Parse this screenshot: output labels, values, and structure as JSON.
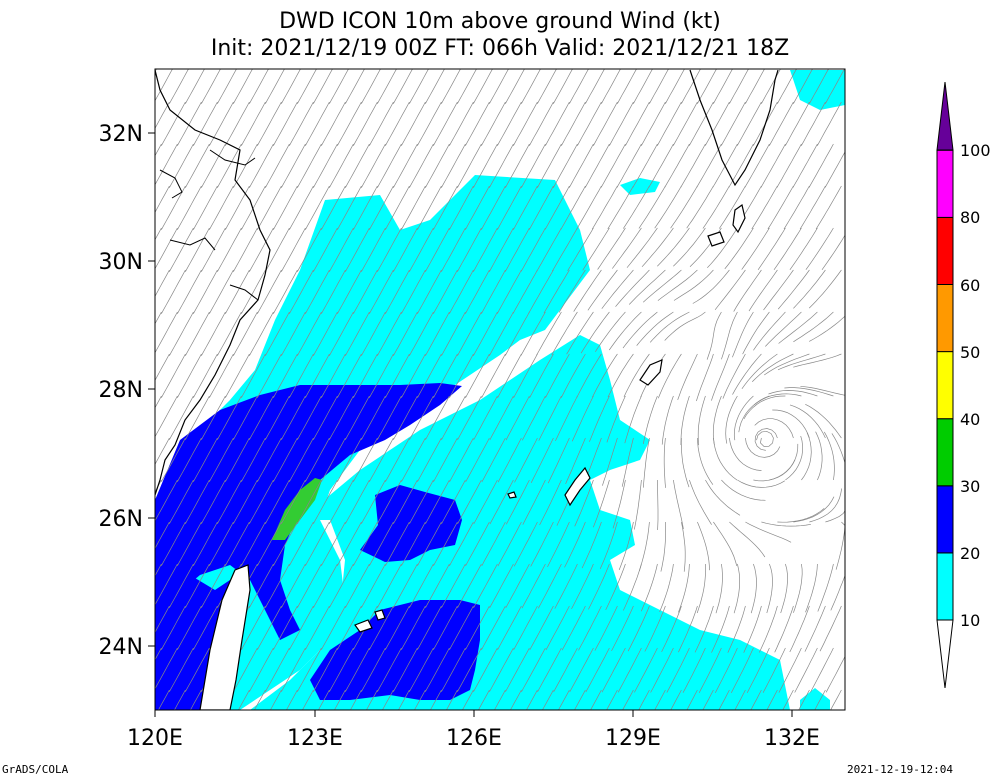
{
  "title": {
    "line1": "DWD ICON 10m above ground Wind (kt)",
    "line2": "Init: 2021/12/19 00Z  FT: 066h  Valid: 2021/12/21 18Z"
  },
  "map": {
    "lat_labels": [
      "32N",
      "30N",
      "28N",
      "26N",
      "24N"
    ],
    "lon_labels": [
      "120E",
      "123E",
      "126E",
      "129E",
      "132E"
    ],
    "lon_range": [
      120,
      133
    ],
    "lat_range": [
      23,
      33
    ]
  },
  "legend": {
    "levels": [
      "10",
      "20",
      "30",
      "40",
      "50",
      "60",
      "80",
      "100"
    ],
    "colors": [
      "#00ffff",
      "#0000ff",
      "#00cc00",
      "#ffff00",
      "#ff9900",
      "#ff0000",
      "#ff00ff",
      "#660099"
    ]
  },
  "footer": {
    "left": "GrADS/COLA",
    "right": "2021-12-19-12:04"
  }
}
